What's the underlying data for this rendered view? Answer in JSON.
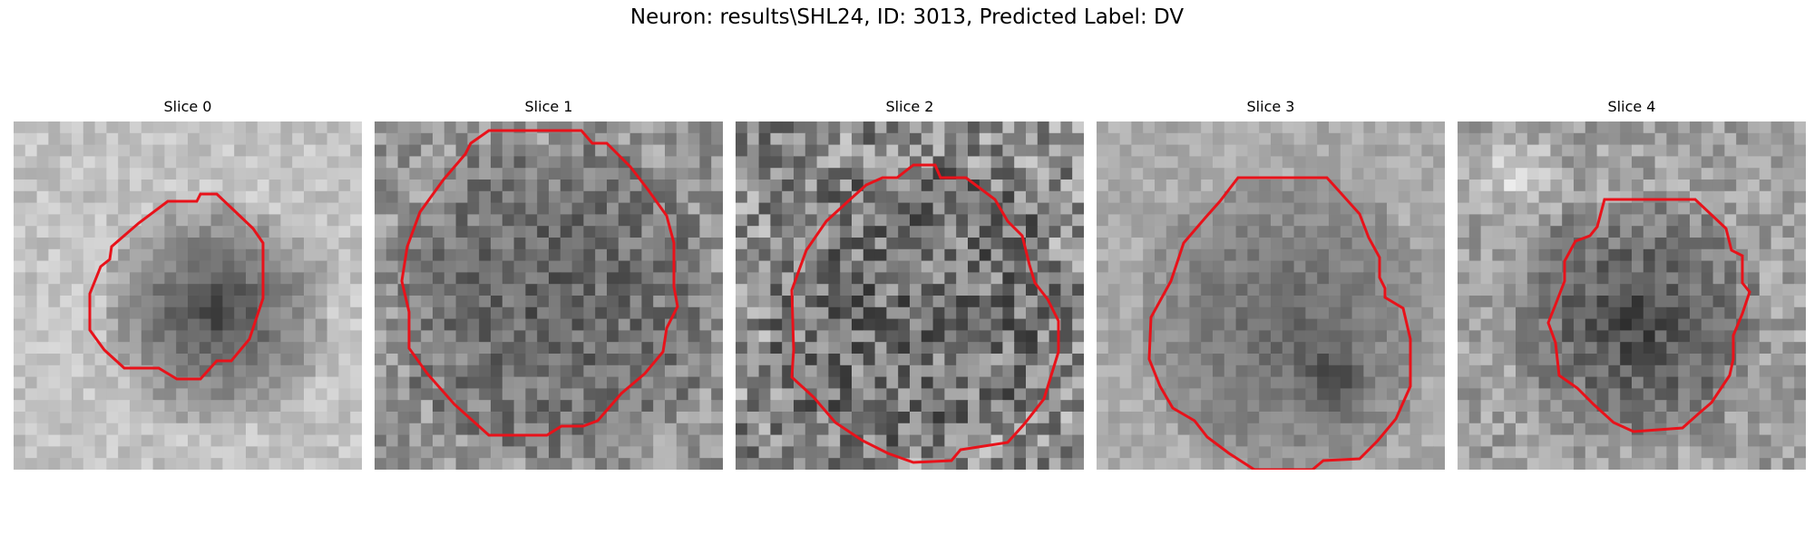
{
  "figure": {
    "title": "Neuron: results\\SHL24, ID: 3013, Predicted Label: DV",
    "outline_color": "#e8121a",
    "colormap": "gray"
  },
  "slices": [
    {
      "title": "Slice 0",
      "texture": "smooth-dark-center"
    },
    {
      "title": "Slice 1",
      "texture": "noisy-dark-ring"
    },
    {
      "title": "Slice 2",
      "texture": "very-noisy"
    },
    {
      "title": "Slice 3",
      "texture": "smooth-dark-lower-right"
    },
    {
      "title": "Slice 4",
      "texture": "bright-upper-left"
    }
  ]
}
